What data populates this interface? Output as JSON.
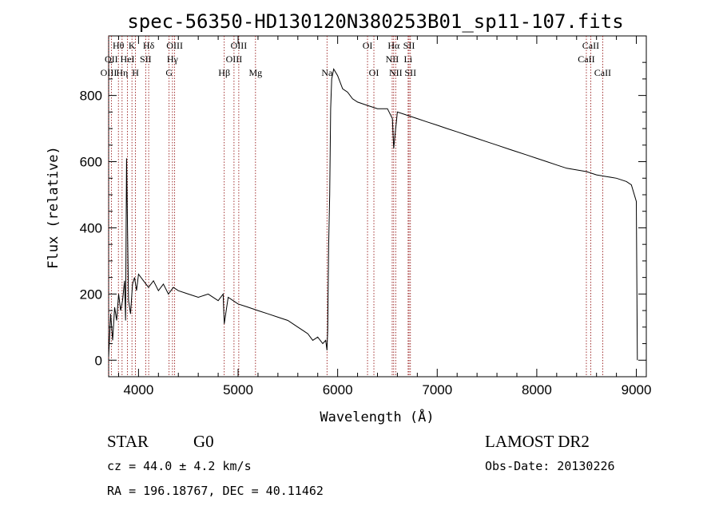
{
  "chart_data": {
    "type": "line",
    "title": "spec-56350-HD130120N380253B01_sp11-107.fits",
    "xlabel": "Wavelength (Å)",
    "ylabel": "Flux (relative)",
    "xlim": [
      3700,
      9100
    ],
    "ylim": [
      -50,
      980
    ],
    "x_ticks": [
      4000,
      5000,
      6000,
      7000,
      8000,
      9000
    ],
    "y_ticks": [
      0,
      200,
      400,
      600,
      800
    ],
    "grid": false,
    "series": [
      {
        "x": [
          3700,
          3720,
          3740,
          3760,
          3780,
          3800,
          3820,
          3840,
          3860,
          3870,
          3880,
          3900,
          3920,
          3940,
          3960,
          3980,
          4000,
          4050,
          4100,
          4150,
          4200,
          4250,
          4300,
          4350,
          4400,
          4500,
          4600,
          4700,
          4800,
          4850,
          4861,
          4900,
          5000,
          5100,
          5200,
          5300,
          5400,
          5500,
          5600,
          5700,
          5750,
          5800,
          5850,
          5880,
          5893,
          5900,
          5910,
          5920,
          5930,
          5940,
          5960,
          6000,
          6050,
          6100,
          6150,
          6200,
          6300,
          6400,
          6500,
          6550,
          6563,
          6600,
          6700,
          6800,
          6900,
          7000,
          7100,
          7200,
          7300,
          7400,
          7500,
          7600,
          7700,
          7800,
          7900,
          8000,
          8100,
          8200,
          8300,
          8400,
          8500,
          8600,
          8700,
          8800,
          8900,
          8950,
          9000,
          9010
        ],
        "y": [
          10,
          140,
          60,
          160,
          120,
          200,
          150,
          180,
          240,
          120,
          610,
          180,
          140,
          230,
          250,
          210,
          260,
          240,
          220,
          240,
          210,
          230,
          200,
          220,
          210,
          200,
          190,
          200,
          180,
          200,
          110,
          190,
          170,
          160,
          150,
          140,
          130,
          120,
          100,
          80,
          60,
          70,
          50,
          60,
          30,
          90,
          350,
          500,
          760,
          850,
          880,
          860,
          820,
          810,
          790,
          780,
          770,
          760,
          760,
          730,
          640,
          750,
          740,
          730,
          720,
          710,
          700,
          690,
          680,
          670,
          660,
          650,
          640,
          630,
          620,
          610,
          600,
          590,
          580,
          575,
          570,
          560,
          555,
          550,
          540,
          530,
          480,
          0
        ]
      }
    ]
  },
  "lines": [
    {
      "label": "Hθ",
      "x": 3798,
      "row": 0
    },
    {
      "label": "K",
      "x": 3934,
      "row": 0
    },
    {
      "label": "Hδ",
      "x": 4102,
      "row": 0
    },
    {
      "label": "OIII",
      "x": 4363,
      "row": 0
    },
    {
      "label": "OIII",
      "x": 5007,
      "row": 0
    },
    {
      "label": "OI",
      "x": 6300,
      "row": 0
    },
    {
      "label": "Hα",
      "x": 6563,
      "row": 0
    },
    {
      "label": "SII",
      "x": 6717,
      "row": 0
    },
    {
      "label": "CaII",
      "x": 8542,
      "row": 0
    },
    {
      "label": "OII",
      "x": 3727,
      "row": 1
    },
    {
      "label": "HeI",
      "x": 3889,
      "row": 1
    },
    {
      "label": "SII",
      "x": 4072,
      "row": 1
    },
    {
      "label": "Hγ",
      "x": 4341,
      "row": 1
    },
    {
      "label": "OIII",
      "x": 4959,
      "row": 1
    },
    {
      "label": "NII",
      "x": 6548,
      "row": 1
    },
    {
      "label": "Li",
      "x": 6708,
      "row": 1
    },
    {
      "label": "CaII",
      "x": 8498,
      "row": 1
    },
    {
      "label": "OIII",
      "x": 3700,
      "row": 2
    },
    {
      "label": "Hη",
      "x": 3835,
      "row": 2
    },
    {
      "label": "H",
      "x": 3969,
      "row": 2
    },
    {
      "label": "G",
      "x": 4307,
      "row": 2
    },
    {
      "label": "Hβ",
      "x": 4861,
      "row": 2
    },
    {
      "label": "Mg",
      "x": 5175,
      "row": 2
    },
    {
      "label": "Na",
      "x": 5893,
      "row": 2
    },
    {
      "label": "OI",
      "x": 6364,
      "row": 2
    },
    {
      "label": "NII",
      "x": 6583,
      "row": 2
    },
    {
      "label": "SII",
      "x": 6731,
      "row": 2
    },
    {
      "label": "CaII",
      "x": 8662,
      "row": 2
    }
  ],
  "info": {
    "object_class": "STAR",
    "subclass": "G0",
    "survey": "LAMOST DR2",
    "redshift": "cz = 44.0 ± 4.2 km/s",
    "obs_date": "Obs-Date: 20130226",
    "coords": "RA = 196.18767, DEC =  40.11462"
  },
  "colors": {
    "spectrum": "#000000",
    "line_markers": "#8b0000",
    "axes": "#000000"
  }
}
